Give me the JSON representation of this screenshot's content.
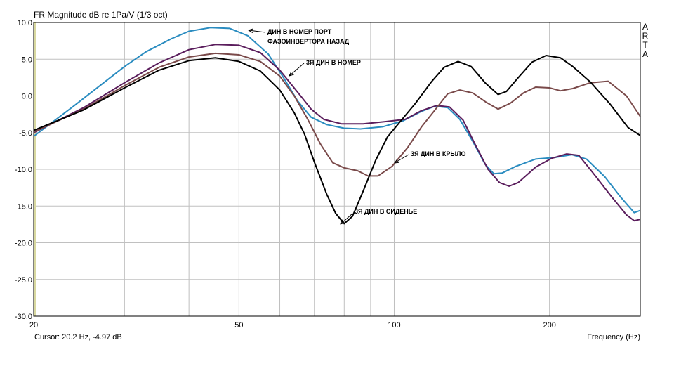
{
  "title": "FR Magnitude dB re 1Pa/V (1/3 oct)",
  "cursor": "Cursor: 20.2 Hz, -4.97 dB",
  "logo": [
    "A",
    "R",
    "T",
    "A"
  ],
  "colors": {
    "grid": "#c0c0c0",
    "axis": "#000000",
    "left_marker": "#d8d8a0"
  },
  "chart_data": {
    "type": "line",
    "title": "FR Magnitude dB re 1Pa/V (1/3 oct)",
    "xlabel": "Frequency (Hz)",
    "ylabel": "",
    "xscale": "log",
    "xlim": [
      20,
      300
    ],
    "ylim": [
      -30,
      10
    ],
    "x_tick_labels": [
      {
        "value": 20,
        "label": "20"
      },
      {
        "value": 50,
        "label": "50"
      },
      {
        "value": 100,
        "label": "100"
      },
      {
        "value": 200,
        "label": "200"
      }
    ],
    "y_ticks": [
      10,
      5,
      0,
      -5,
      -10,
      -15,
      -20,
      -25,
      -30
    ],
    "y_tick_labels": [
      "10.0",
      "5.0",
      "0.0",
      "-5.0",
      "-10.0",
      "-15.0",
      "-20.0",
      "-25.0",
      "-30.0"
    ],
    "grid": true,
    "series": [
      {
        "color": "#2a8cc0",
        "points": [
          [
            20,
            -5.5
          ],
          [
            24,
            -1.3
          ],
          [
            27,
            1.5
          ],
          [
            30,
            4.0
          ],
          [
            33,
            6.0
          ],
          [
            37,
            7.8
          ],
          [
            40,
            8.8
          ],
          [
            44,
            9.3
          ],
          [
            48,
            9.2
          ],
          [
            52,
            8.2
          ],
          [
            57,
            5.7
          ],
          [
            61,
            2.5
          ],
          [
            65,
            -0.7
          ],
          [
            69,
            -2.9
          ],
          [
            74,
            -3.9
          ],
          [
            80,
            -4.4
          ],
          [
            86,
            -4.5
          ],
          [
            95,
            -4.2
          ],
          [
            104,
            -3.4
          ],
          [
            113,
            -2.1
          ],
          [
            120,
            -1.4
          ],
          [
            127,
            -1.6
          ],
          [
            134,
            -3.2
          ],
          [
            142,
            -6.2
          ],
          [
            150,
            -9.3
          ],
          [
            156,
            -10.6
          ],
          [
            162,
            -10.5
          ],
          [
            172,
            -9.6
          ],
          [
            188,
            -8.6
          ],
          [
            204,
            -8.4
          ],
          [
            221,
            -8.0
          ],
          [
            236,
            -8.6
          ],
          [
            256,
            -11.0
          ],
          [
            275,
            -13.8
          ],
          [
            292,
            -15.9
          ],
          [
            300,
            -15.6
          ]
        ]
      },
      {
        "color": "#5a1d5c",
        "points": [
          [
            20,
            -5.0
          ],
          [
            25,
            -1.6
          ],
          [
            30,
            1.8
          ],
          [
            35,
            4.5
          ],
          [
            40,
            6.3
          ],
          [
            45,
            7.0
          ],
          [
            50,
            6.9
          ],
          [
            55,
            5.9
          ],
          [
            60,
            3.5
          ],
          [
            65,
            0.5
          ],
          [
            69,
            -1.8
          ],
          [
            73,
            -3.2
          ],
          [
            79,
            -3.8
          ],
          [
            87,
            -3.8
          ],
          [
            96,
            -3.5
          ],
          [
            105,
            -3.2
          ],
          [
            113,
            -2.0
          ],
          [
            121,
            -1.3
          ],
          [
            128,
            -1.5
          ],
          [
            136,
            -3.3
          ],
          [
            144,
            -6.8
          ],
          [
            152,
            -10.0
          ],
          [
            160,
            -11.8
          ],
          [
            167,
            -12.3
          ],
          [
            174,
            -11.8
          ],
          [
            188,
            -9.7
          ],
          [
            202,
            -8.5
          ],
          [
            216,
            -7.9
          ],
          [
            228,
            -8.1
          ],
          [
            243,
            -10.5
          ],
          [
            263,
            -13.6
          ],
          [
            282,
            -16.2
          ],
          [
            292,
            -17.0
          ],
          [
            300,
            -16.8
          ]
        ]
      },
      {
        "color": "#7a4a4a",
        "points": [
          [
            20,
            -4.9
          ],
          [
            25,
            -1.8
          ],
          [
            30,
            1.4
          ],
          [
            35,
            3.9
          ],
          [
            40,
            5.3
          ],
          [
            45,
            5.8
          ],
          [
            50,
            5.6
          ],
          [
            55,
            4.7
          ],
          [
            60,
            2.7
          ],
          [
            64,
            0.0
          ],
          [
            68,
            -3.2
          ],
          [
            72,
            -6.6
          ],
          [
            76,
            -9.1
          ],
          [
            80,
            -9.8
          ],
          [
            85,
            -10.2
          ],
          [
            89,
            -10.9
          ],
          [
            93,
            -10.9
          ],
          [
            99,
            -9.6
          ],
          [
            106,
            -7.1
          ],
          [
            113,
            -4.2
          ],
          [
            120,
            -1.9
          ],
          [
            127,
            0.3
          ],
          [
            134,
            0.8
          ],
          [
            142,
            0.4
          ],
          [
            151,
            -0.9
          ],
          [
            159,
            -1.8
          ],
          [
            168,
            -1.0
          ],
          [
            178,
            0.4
          ],
          [
            188,
            1.2
          ],
          [
            200,
            1.1
          ],
          [
            210,
            0.7
          ],
          [
            222,
            1.0
          ],
          [
            240,
            1.8
          ],
          [
            260,
            2.0
          ],
          [
            282,
            0.0
          ],
          [
            300,
            -2.8
          ]
        ]
      },
      {
        "color": "#000000",
        "points": [
          [
            20,
            -4.7
          ],
          [
            25,
            -1.9
          ],
          [
            30,
            1.1
          ],
          [
            35,
            3.5
          ],
          [
            40,
            4.8
          ],
          [
            45,
            5.2
          ],
          [
            50,
            4.7
          ],
          [
            55,
            3.4
          ],
          [
            60,
            0.8
          ],
          [
            64,
            -2.3
          ],
          [
            67,
            -5.2
          ],
          [
            70,
            -9.0
          ],
          [
            74,
            -13.4
          ],
          [
            77,
            -16.0
          ],
          [
            80,
            -17.4
          ],
          [
            83,
            -16.4
          ],
          [
            87,
            -13.0
          ],
          [
            92,
            -8.8
          ],
          [
            97,
            -5.6
          ],
          [
            103,
            -3.4
          ],
          [
            110,
            -1.0
          ],
          [
            118,
            1.9
          ],
          [
            125,
            3.9
          ],
          [
            133,
            4.7
          ],
          [
            141,
            4.0
          ],
          [
            150,
            1.8
          ],
          [
            159,
            0.2
          ],
          [
            165,
            0.6
          ],
          [
            174,
            2.5
          ],
          [
            185,
            4.6
          ],
          [
            197,
            5.5
          ],
          [
            210,
            5.2
          ],
          [
            222,
            4.0
          ],
          [
            240,
            1.9
          ],
          [
            262,
            -1.1
          ],
          [
            284,
            -4.3
          ],
          [
            300,
            -5.4
          ]
        ]
      }
    ],
    "annotations": [
      "ДИН В НОМЕР ПОРТ",
      "ФАЗОИНВЕРТОРА НАЗАД",
      "3Я ДИН В НОМЕР",
      "3Я ДИН В КРЫЛО",
      "3Я ДИН В СИДЕНЬЕ"
    ]
  }
}
